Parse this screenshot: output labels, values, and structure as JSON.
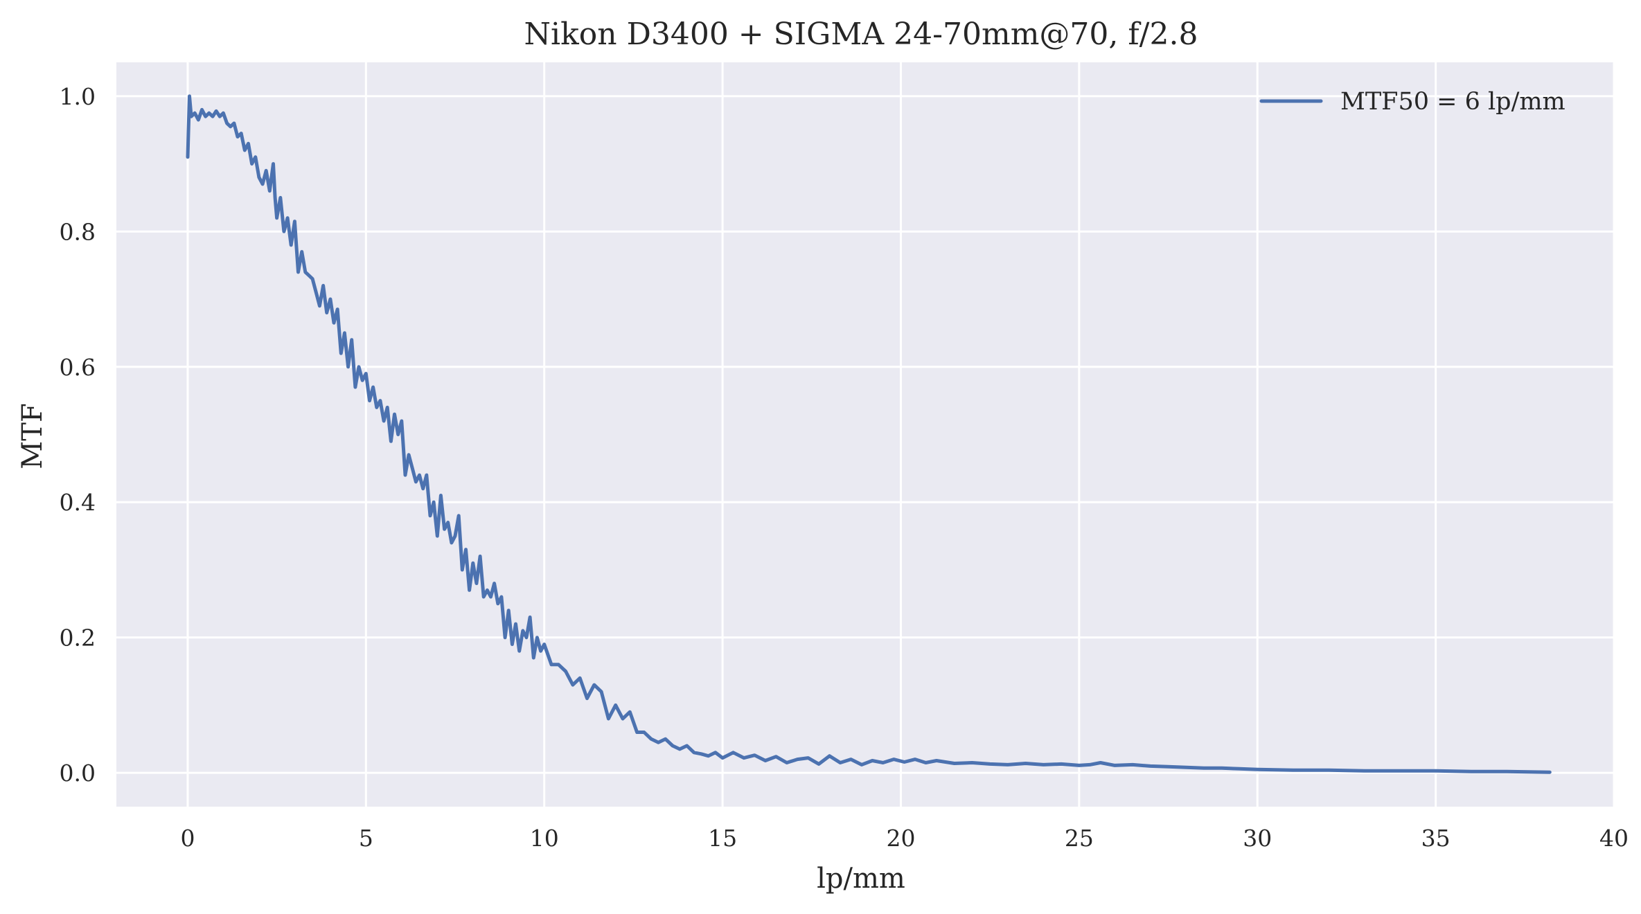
{
  "chart_data": {
    "type": "line",
    "title": "Nikon D3400 + SIGMA 24-70mm@70, f/2.8",
    "xlabel": "lp/mm",
    "ylabel": "MTF",
    "xlim": [
      -2,
      40
    ],
    "ylim": [
      -0.05,
      1.05
    ],
    "xticks": [
      0,
      5,
      10,
      15,
      20,
      25,
      30,
      35,
      40
    ],
    "xtick_labels": [
      "0",
      "5",
      "10",
      "15",
      "20",
      "25",
      "30",
      "35",
      "40"
    ],
    "yticks": [
      0.0,
      0.2,
      0.4,
      0.6,
      0.8,
      1.0
    ],
    "ytick_labels": [
      "0.0",
      "0.2",
      "0.4",
      "0.6",
      "0.8",
      "1.0"
    ],
    "grid": true,
    "background": "#eaeaf2",
    "grid_color": "#ffffff",
    "legend_position": "top-right",
    "series": [
      {
        "name": "MTF50 = 6 lp/mm",
        "color": "#4c72b0",
        "x": [
          0,
          0.05,
          0.1,
          0.2,
          0.3,
          0.4,
          0.5,
          0.6,
          0.7,
          0.8,
          0.9,
          1.0,
          1.1,
          1.2,
          1.3,
          1.4,
          1.5,
          1.6,
          1.7,
          1.8,
          1.9,
          2.0,
          2.1,
          2.2,
          2.3,
          2.4,
          2.45,
          2.5,
          2.6,
          2.7,
          2.8,
          2.9,
          3.0,
          3.1,
          3.2,
          3.3,
          3.4,
          3.5,
          3.6,
          3.7,
          3.8,
          3.9,
          4.0,
          4.1,
          4.2,
          4.3,
          4.4,
          4.5,
          4.6,
          4.7,
          4.8,
          4.9,
          5.0,
          5.1,
          5.2,
          5.3,
          5.4,
          5.5,
          5.6,
          5.7,
          5.8,
          5.9,
          6.0,
          6.1,
          6.2,
          6.3,
          6.4,
          6.5,
          6.6,
          6.7,
          6.8,
          6.9,
          7.0,
          7.1,
          7.2,
          7.3,
          7.4,
          7.5,
          7.6,
          7.7,
          7.8,
          7.9,
          8.0,
          8.1,
          8.2,
          8.3,
          8.4,
          8.5,
          8.6,
          8.7,
          8.8,
          8.9,
          9.0,
          9.1,
          9.2,
          9.3,
          9.4,
          9.5,
          9.6,
          9.7,
          9.8,
          9.9,
          10.0,
          10.2,
          10.4,
          10.6,
          10.8,
          11.0,
          11.2,
          11.4,
          11.6,
          11.8,
          12.0,
          12.2,
          12.4,
          12.6,
          12.8,
          13.0,
          13.2,
          13.4,
          13.6,
          13.8,
          14.0,
          14.2,
          14.4,
          14.6,
          14.8,
          15.0,
          15.3,
          15.6,
          15.9,
          16.2,
          16.5,
          16.8,
          17.1,
          17.4,
          17.7,
          18.0,
          18.3,
          18.6,
          18.9,
          19.2,
          19.5,
          19.8,
          20.1,
          20.4,
          20.7,
          21.0,
          21.5,
          22.0,
          22.5,
          23.0,
          23.5,
          24.0,
          24.5,
          25.0,
          25.3,
          25.6,
          26.0,
          26.5,
          27.0,
          27.5,
          28.0,
          28.5,
          29.0,
          29.5,
          30.0,
          31.0,
          32.0,
          33.0,
          34.0,
          35.0,
          36.0,
          37.0,
          38.2
        ],
        "y": [
          0.91,
          1.0,
          0.97,
          0.975,
          0.965,
          0.98,
          0.97,
          0.975,
          0.97,
          0.978,
          0.97,
          0.975,
          0.96,
          0.955,
          0.96,
          0.94,
          0.945,
          0.92,
          0.93,
          0.9,
          0.91,
          0.88,
          0.87,
          0.89,
          0.86,
          0.9,
          0.85,
          0.82,
          0.85,
          0.8,
          0.82,
          0.78,
          0.815,
          0.74,
          0.77,
          0.74,
          0.735,
          0.73,
          0.71,
          0.69,
          0.72,
          0.68,
          0.7,
          0.665,
          0.685,
          0.62,
          0.65,
          0.6,
          0.64,
          0.57,
          0.6,
          0.58,
          0.59,
          0.55,
          0.57,
          0.54,
          0.55,
          0.52,
          0.54,
          0.49,
          0.53,
          0.5,
          0.52,
          0.44,
          0.47,
          0.45,
          0.43,
          0.44,
          0.42,
          0.44,
          0.38,
          0.4,
          0.35,
          0.41,
          0.36,
          0.37,
          0.34,
          0.35,
          0.38,
          0.3,
          0.33,
          0.27,
          0.31,
          0.28,
          0.32,
          0.26,
          0.27,
          0.26,
          0.28,
          0.25,
          0.26,
          0.2,
          0.24,
          0.19,
          0.22,
          0.18,
          0.21,
          0.2,
          0.23,
          0.17,
          0.2,
          0.18,
          0.19,
          0.16,
          0.16,
          0.15,
          0.13,
          0.14,
          0.11,
          0.13,
          0.12,
          0.08,
          0.1,
          0.08,
          0.09,
          0.06,
          0.06,
          0.05,
          0.045,
          0.05,
          0.04,
          0.035,
          0.04,
          0.03,
          0.028,
          0.025,
          0.03,
          0.022,
          0.03,
          0.022,
          0.026,
          0.018,
          0.024,
          0.015,
          0.02,
          0.022,
          0.013,
          0.025,
          0.015,
          0.02,
          0.012,
          0.018,
          0.015,
          0.02,
          0.016,
          0.02,
          0.015,
          0.018,
          0.014,
          0.015,
          0.013,
          0.012,
          0.014,
          0.012,
          0.013,
          0.011,
          0.012,
          0.015,
          0.011,
          0.012,
          0.01,
          0.009,
          0.008,
          0.007,
          0.007,
          0.006,
          0.005,
          0.004,
          0.004,
          0.003,
          0.003,
          0.003,
          0.002,
          0.002,
          0.001
        ]
      }
    ]
  }
}
